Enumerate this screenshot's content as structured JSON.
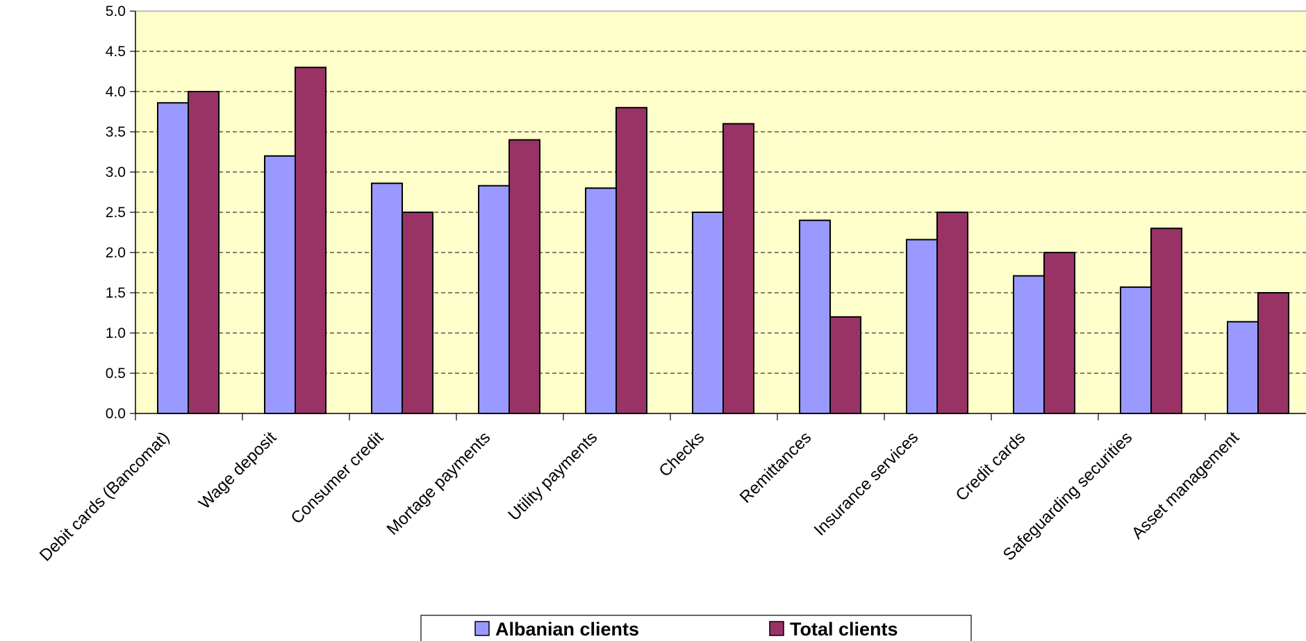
{
  "chart_data": {
    "type": "bar",
    "categories": [
      "Debit cards (Bancomat)",
      "Wage deposit",
      "Consumer credit",
      "Mortage payments",
      "Utility payments",
      "Checks",
      "Remittances",
      "Insurance services",
      "Credit cards",
      "Safeguarding securities",
      "Asset management"
    ],
    "series": [
      {
        "name": "Albanian clients",
        "color": "#9999FF",
        "values": [
          3.86,
          3.2,
          2.86,
          2.83,
          2.8,
          2.5,
          2.4,
          2.16,
          1.71,
          1.57,
          1.14
        ]
      },
      {
        "name": "Total clients",
        "color": "#993366",
        "values": [
          4.0,
          4.3,
          2.5,
          3.4,
          3.8,
          3.6,
          1.2,
          2.5,
          2.0,
          2.3,
          1.5
        ]
      }
    ],
    "ylim": [
      0,
      5
    ],
    "yticks": [
      "0.0",
      "0.5",
      "1.0",
      "1.5",
      "2.0",
      "2.5",
      "3.0",
      "3.5",
      "4.0",
      "4.5",
      "5.0"
    ],
    "grid": true,
    "plot_background": "#FFFFCC",
    "legend": {
      "position": "bottom",
      "entries": [
        "Albanian clients",
        "Total clients"
      ]
    },
    "title": "",
    "xlabel": "",
    "ylabel": ""
  }
}
